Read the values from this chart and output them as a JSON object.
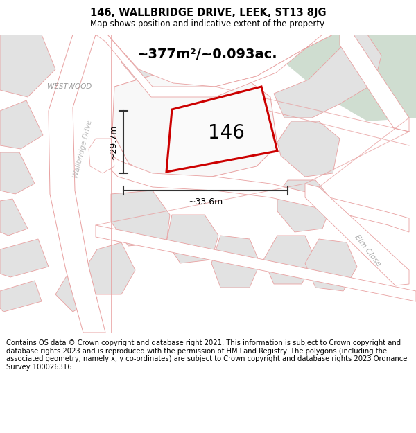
{
  "title": "146, WALLBRIDGE DRIVE, LEEK, ST13 8JG",
  "subtitle": "Map shows position and indicative extent of the property.",
  "footer": "Contains OS data © Crown copyright and database right 2021. This information is subject to Crown copyright and database rights 2023 and is reproduced with the permission of HM Land Registry. The polygons (including the associated geometry, namely x, y co-ordinates) are subject to Crown copyright and database rights 2023 Ordnance Survey 100026316.",
  "area_label": "~377m²/~0.093ac.",
  "plot_number": "146",
  "dim_width": "~33.6m",
  "dim_height": "~29.7m",
  "bg_map_color": "#efefed",
  "green_area_color": "#cfddd0",
  "road_border_color": "#e8a0a0",
  "plot_outline_color": "#cc0000",
  "dim_line_color": "#333333",
  "title_fontsize": 10.5,
  "subtitle_fontsize": 8.5,
  "footer_fontsize": 7.2,
  "area_fontsize": 14,
  "plot_num_fontsize": 20,
  "dim_fontsize": 9,
  "street_fontsize": 8
}
